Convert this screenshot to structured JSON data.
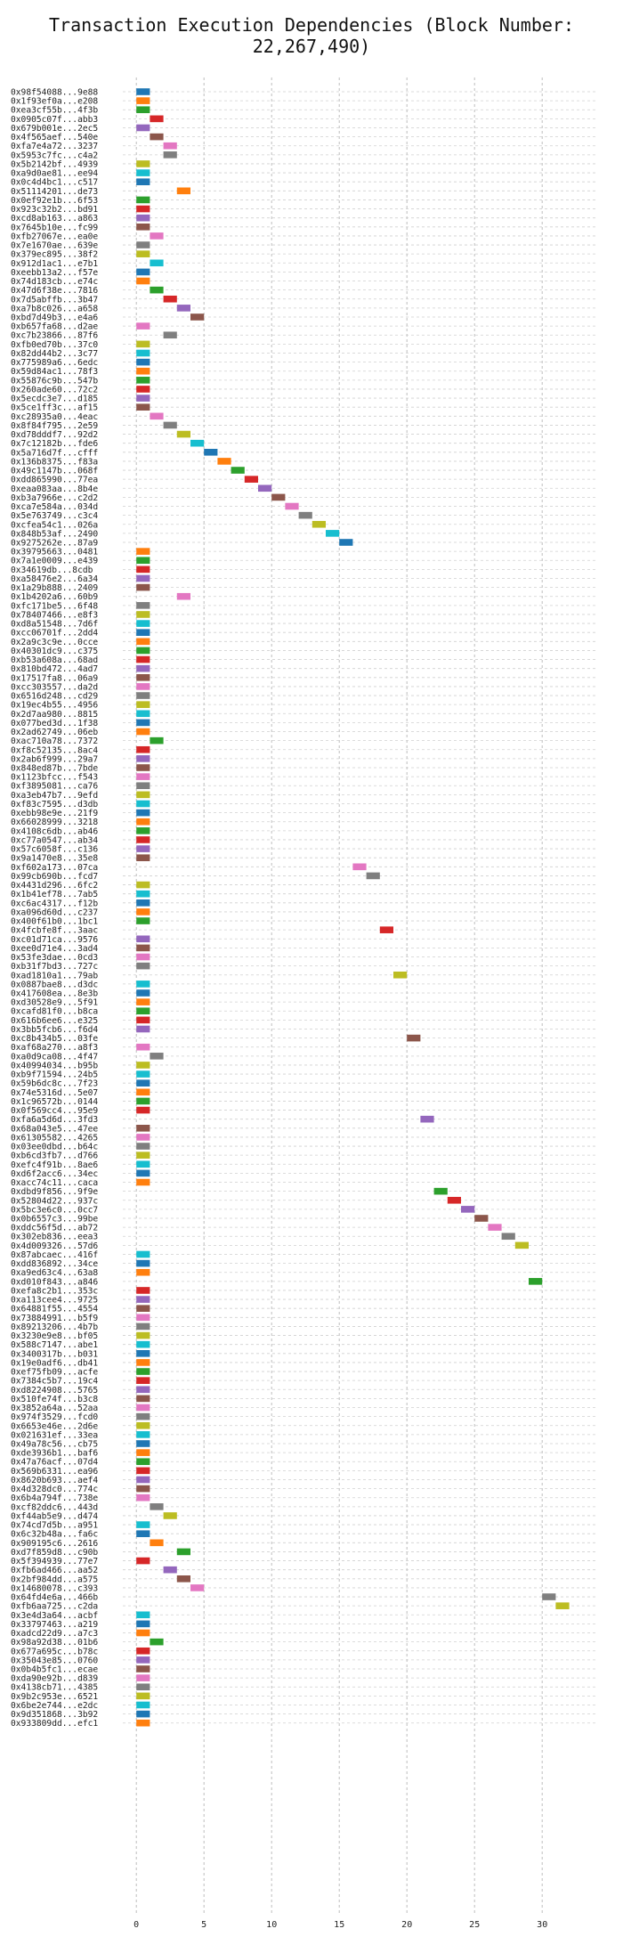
{
  "chart_data": {
    "type": "bar",
    "orientation": "horizontal-gantt",
    "title": "Transaction Execution Dependencies (Block Number: 22,267,490)",
    "xlabel": "",
    "ylabel": "",
    "xlim": [
      -1,
      34
    ],
    "x_ticks": [
      0,
      5,
      10,
      15,
      20,
      25,
      30
    ],
    "grid": true,
    "palette": [
      "#1f77b4",
      "#ff7f0e",
      "#2ca02c",
      "#d62728",
      "#9467bd",
      "#8c564b",
      "#e377c2",
      "#7f7f7f",
      "#bcbd22",
      "#17becf"
    ],
    "transactions": [
      {
        "label": "0x98f54088...9e88",
        "start": 0
      },
      {
        "label": "0x1f93ef0a...e208",
        "start": 0
      },
      {
        "label": "0xea3cf55b...4f3b",
        "start": 0
      },
      {
        "label": "0x0905c07f...abb3",
        "start": 1
      },
      {
        "label": "0x679b001e...2ec5",
        "start": 0
      },
      {
        "label": "0x4f565aef...540e",
        "start": 1
      },
      {
        "label": "0xfa7e4a72...3237",
        "start": 2
      },
      {
        "label": "0x5953c7fc...c4a2",
        "start": 2
      },
      {
        "label": "0x5b2142bf...4939",
        "start": 0
      },
      {
        "label": "0xa9d0ae81...ee94",
        "start": 0
      },
      {
        "label": "0x0c4d4bc1...c517",
        "start": 0
      },
      {
        "label": "0x51114201...de73",
        "start": 3
      },
      {
        "label": "0x0ef92e1b...6f53",
        "start": 0
      },
      {
        "label": "0x923c32b2...bd91",
        "start": 0
      },
      {
        "label": "0xcd8ab163...a863",
        "start": 0
      },
      {
        "label": "0x7645b10e...fc99",
        "start": 0
      },
      {
        "label": "0xfb27067e...ea0e",
        "start": 1
      },
      {
        "label": "0x7e1670ae...639e",
        "start": 0
      },
      {
        "label": "0x379ec895...38f2",
        "start": 0
      },
      {
        "label": "0x912d1ac1...e7b1",
        "start": 1
      },
      {
        "label": "0xeebb13a2...f57e",
        "start": 0
      },
      {
        "label": "0x74d183cb...e74c",
        "start": 0
      },
      {
        "label": "0x47d6f38e...7816",
        "start": 1
      },
      {
        "label": "0x7d5abffb...3b47",
        "start": 2
      },
      {
        "label": "0xa7b8c026...a658",
        "start": 3
      },
      {
        "label": "0xbd7d49b3...e4a6",
        "start": 4
      },
      {
        "label": "0xb657fa68...d2ae",
        "start": 0
      },
      {
        "label": "0xc7b23866...87f6",
        "start": 2
      },
      {
        "label": "0xfb0ed70b...37c0",
        "start": 0
      },
      {
        "label": "0x82dd44b2...3c77",
        "start": 0
      },
      {
        "label": "0x775989a6...6edc",
        "start": 0
      },
      {
        "label": "0x59d84ac1...78f3",
        "start": 0
      },
      {
        "label": "0x55876c9b...547b",
        "start": 0
      },
      {
        "label": "0x260ade60...72c2",
        "start": 0
      },
      {
        "label": "0x5ecdc3e7...d185",
        "start": 0
      },
      {
        "label": "0x5ce1ff3c...af15",
        "start": 0
      },
      {
        "label": "0xc28935a0...4eac",
        "start": 1
      },
      {
        "label": "0x8f84f795...2e59",
        "start": 2
      },
      {
        "label": "0xd78dddf7...92d2",
        "start": 3
      },
      {
        "label": "0x7c12182b...fde6",
        "start": 4
      },
      {
        "label": "0x5a716d7f...cfff",
        "start": 5
      },
      {
        "label": "0x136b8375...f83a",
        "start": 6
      },
      {
        "label": "0x49c1147b...068f",
        "start": 7
      },
      {
        "label": "0xdd865990...77ea",
        "start": 8
      },
      {
        "label": "0xeaa083aa...8b4e",
        "start": 9
      },
      {
        "label": "0xb3a7966e...c2d2",
        "start": 10
      },
      {
        "label": "0xca7e584a...034d",
        "start": 11
      },
      {
        "label": "0x5e763749...c3c4",
        "start": 12
      },
      {
        "label": "0xcfea54c1...026a",
        "start": 13
      },
      {
        "label": "0x848b53af...2490",
        "start": 14
      },
      {
        "label": "0x9275262e...87a9",
        "start": 15
      },
      {
        "label": "0x39795663...0481",
        "start": 0
      },
      {
        "label": "0x7a1e0009...e439",
        "start": 0
      },
      {
        "label": "0x34619db...8cdb",
        "start": 0
      },
      {
        "label": "0xa58476e2...6a34",
        "start": 0
      },
      {
        "label": "0x1a29b888...2409",
        "start": 0
      },
      {
        "label": "0x1b4202a6...60b9",
        "start": 3
      },
      {
        "label": "0xfc171be5...6f48",
        "start": 0
      },
      {
        "label": "0x78407466...e8f3",
        "start": 0
      },
      {
        "label": "0xd8a51548...7d6f",
        "start": 0
      },
      {
        "label": "0xcc06701f...2dd4",
        "start": 0
      },
      {
        "label": "0x2a9c3c9e...0cce",
        "start": 0
      },
      {
        "label": "0x40301dc9...c375",
        "start": 0
      },
      {
        "label": "0xb53a608a...68ad",
        "start": 0
      },
      {
        "label": "0x810bd472...4ad7",
        "start": 0
      },
      {
        "label": "0x17517fa8...06a9",
        "start": 0
      },
      {
        "label": "0xcc303557...da2d",
        "start": 0
      },
      {
        "label": "0x6516d248...cd29",
        "start": 0
      },
      {
        "label": "0x19ec4b55...4956",
        "start": 0
      },
      {
        "label": "0x2d7aa980...8815",
        "start": 0
      },
      {
        "label": "0x077bed3d...1f38",
        "start": 0
      },
      {
        "label": "0x2ad62749...06eb",
        "start": 0
      },
      {
        "label": "0xac710a78...7372",
        "start": 1
      },
      {
        "label": "0xf8c52135...8ac4",
        "start": 0
      },
      {
        "label": "0x2ab6f999...29a7",
        "start": 0
      },
      {
        "label": "0x848ed87b...7bde",
        "start": 0
      },
      {
        "label": "0x1123bfcc...f543",
        "start": 0
      },
      {
        "label": "0xf3895081...ca76",
        "start": 0
      },
      {
        "label": "0xa3eb47b7...9efd",
        "start": 0
      },
      {
        "label": "0xf83c7595...d3db",
        "start": 0
      },
      {
        "label": "0xebb98e9e...21f9",
        "start": 0
      },
      {
        "label": "0x66028999...3218",
        "start": 0
      },
      {
        "label": "0x4108c6db...ab46",
        "start": 0
      },
      {
        "label": "0xc77a0547...ab34",
        "start": 0
      },
      {
        "label": "0x57c6058f...c136",
        "start": 0
      },
      {
        "label": "0x9a1470e8...35e8",
        "start": 0
      },
      {
        "label": "0xf602a173...07ca",
        "start": 16
      },
      {
        "label": "0x99cb690b...fcd7",
        "start": 17
      },
      {
        "label": "0x4431d296...6fc2",
        "start": 0
      },
      {
        "label": "0x1b41ef78...7ab5",
        "start": 0
      },
      {
        "label": "0xc6ac4317...f12b",
        "start": 0
      },
      {
        "label": "0xa096d60d...c237",
        "start": 0
      },
      {
        "label": "0x400f61b0...1bc1",
        "start": 0
      },
      {
        "label": "0x4fcbfe8f...3aac",
        "start": 18
      },
      {
        "label": "0xc01d71ca...9576",
        "start": 0
      },
      {
        "label": "0xee0d71e4...3ad4",
        "start": 0
      },
      {
        "label": "0x53fe3dae...0cd3",
        "start": 0
      },
      {
        "label": "0xb31f7bd3...727c",
        "start": 0
      },
      {
        "label": "0xad1810a1...79ab",
        "start": 19
      },
      {
        "label": "0x0887bae8...d3dc",
        "start": 0
      },
      {
        "label": "0x417608ea...8e3b",
        "start": 0
      },
      {
        "label": "0xd30528e9...5f91",
        "start": 0
      },
      {
        "label": "0xcafd81f0...b8ca",
        "start": 0
      },
      {
        "label": "0x616b6ee6...e325",
        "start": 0
      },
      {
        "label": "0x3bb5fcb6...f6d4",
        "start": 0
      },
      {
        "label": "0xc8b434b5...03fe",
        "start": 20
      },
      {
        "label": "0xaf68a270...a8f3",
        "start": 0
      },
      {
        "label": "0xa0d9ca08...4f47",
        "start": 1
      },
      {
        "label": "0x40994034...b95b",
        "start": 0
      },
      {
        "label": "0xb9f71594...24b5",
        "start": 0
      },
      {
        "label": "0x59b6dc8c...7f23",
        "start": 0
      },
      {
        "label": "0x74e5316d...5e07",
        "start": 0
      },
      {
        "label": "0x1c96572b...0144",
        "start": 0
      },
      {
        "label": "0x0f569cc4...95e9",
        "start": 0
      },
      {
        "label": "0xfa6a5d6d...3fd3",
        "start": 21
      },
      {
        "label": "0x68a043e5...47ee",
        "start": 0
      },
      {
        "label": "0x61305582...4265",
        "start": 0
      },
      {
        "label": "0x03ee0dbd...b64c",
        "start": 0
      },
      {
        "label": "0xb6cd3fb7...d766",
        "start": 0
      },
      {
        "label": "0xefc4f91b...8ae6",
        "start": 0
      },
      {
        "label": "0xd6f2acc6...34ec",
        "start": 0
      },
      {
        "label": "0xacc74c11...caca",
        "start": 0
      },
      {
        "label": "0xdbd9f856...9f9e",
        "start": 22
      },
      {
        "label": "0x52804d22...937c",
        "start": 23
      },
      {
        "label": "0x5bc3e6c0...0cc7",
        "start": 24
      },
      {
        "label": "0x0b6557c3...99be",
        "start": 25
      },
      {
        "label": "0xddc56f5d...ab72",
        "start": 26
      },
      {
        "label": "0x302eb836...eea3",
        "start": 27
      },
      {
        "label": "0x4d009326...57d6",
        "start": 28
      },
      {
        "label": "0x87abcaec...416f",
        "start": 0
      },
      {
        "label": "0xdd836892...34ce",
        "start": 0
      },
      {
        "label": "0xa9ed63c4...63a8",
        "start": 0
      },
      {
        "label": "0xd010f843...a846",
        "start": 29
      },
      {
        "label": "0xefa8c2b1...353c",
        "start": 0
      },
      {
        "label": "0xa113cee4...9725",
        "start": 0
      },
      {
        "label": "0x64881f55...4554",
        "start": 0
      },
      {
        "label": "0x73884991...b5f9",
        "start": 0
      },
      {
        "label": "0x89213206...4b7b",
        "start": 0
      },
      {
        "label": "0x3230e9e8...bf05",
        "start": 0
      },
      {
        "label": "0x588c7147...abe1",
        "start": 0
      },
      {
        "label": "0x3400317b...b031",
        "start": 0
      },
      {
        "label": "0x19e0adf6...db41",
        "start": 0
      },
      {
        "label": "0xef75fb09...acfe",
        "start": 0
      },
      {
        "label": "0x7384c5b7...19c4",
        "start": 0
      },
      {
        "label": "0xd8224908...5765",
        "start": 0
      },
      {
        "label": "0x510fe74f...b3c8",
        "start": 0
      },
      {
        "label": "0x3852a64a...52aa",
        "start": 0
      },
      {
        "label": "0x974f3529...fcd0",
        "start": 0
      },
      {
        "label": "0x6653e46e...2d6e",
        "start": 0
      },
      {
        "label": "0x021631ef...33ea",
        "start": 0
      },
      {
        "label": "0x49a78c56...cb75",
        "start": 0
      },
      {
        "label": "0xde3936b1...baf6",
        "start": 0
      },
      {
        "label": "0x47a76acf...07d4",
        "start": 0
      },
      {
        "label": "0x569b6331...ea96",
        "start": 0
      },
      {
        "label": "0x8620b693...aef4",
        "start": 0
      },
      {
        "label": "0x4d328dc0...774c",
        "start": 0
      },
      {
        "label": "0x6b4a794f...738e",
        "start": 0
      },
      {
        "label": "0xcf82ddc6...443d",
        "start": 1
      },
      {
        "label": "0xf44ab5e9...d474",
        "start": 2
      },
      {
        "label": "0x74cd7d5b...a951",
        "start": 0
      },
      {
        "label": "0x6c32b48a...fa6c",
        "start": 0
      },
      {
        "label": "0x909195c6...2616",
        "start": 1
      },
      {
        "label": "0xd7f859d8...c90b",
        "start": 3
      },
      {
        "label": "0x5f394939...77e7",
        "start": 0
      },
      {
        "label": "0xfb6ad466...aa52",
        "start": 2
      },
      {
        "label": "0x2bf984dd...a575",
        "start": 3
      },
      {
        "label": "0x14680078...c393",
        "start": 4
      },
      {
        "label": "0x64fd4e6a...466b",
        "start": 30
      },
      {
        "label": "0xfb6aa725...c2da",
        "start": 31
      },
      {
        "label": "0x3e4d3a64...acbf",
        "start": 0
      },
      {
        "label": "0x33797463...a219",
        "start": 0
      },
      {
        "label": "0xadcd22d9...a7c3",
        "start": 0
      },
      {
        "label": "0x98a92d38...01b6",
        "start": 1
      },
      {
        "label": "0x677a695c...b78c",
        "start": 0
      },
      {
        "label": "0x35043e85...0760",
        "start": 0
      },
      {
        "label": "0x0b4b5fc1...ecae",
        "start": 0
      },
      {
        "label": "0xda90e92b...d839",
        "start": 0
      },
      {
        "label": "0x4138cb71...4385",
        "start": 0
      },
      {
        "label": "0x9b2c953e...6521",
        "start": 0
      },
      {
        "label": "0x6be2e744...e2dc",
        "start": 0
      },
      {
        "label": "0x9d351868...3b92",
        "start": 0
      },
      {
        "label": "0x933809dd...efc1",
        "start": 0
      }
    ]
  }
}
